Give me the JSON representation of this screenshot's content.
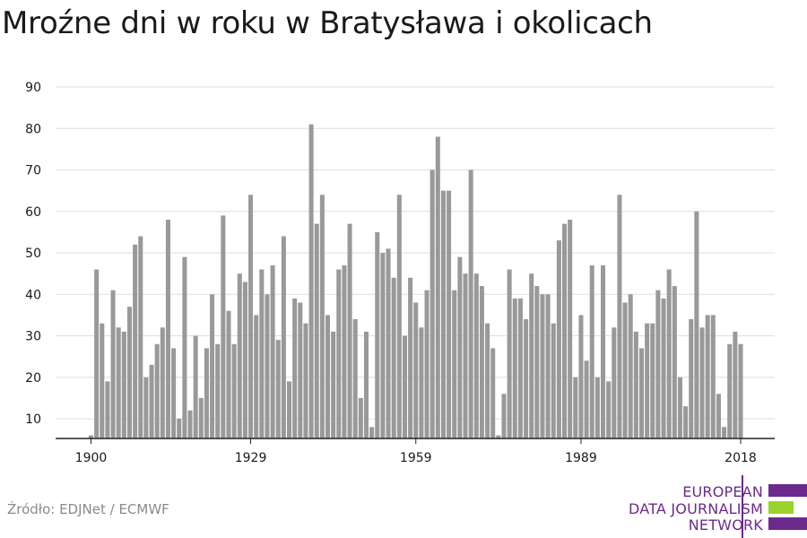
{
  "chart_data": {
    "type": "bar",
    "title": "Mroźne dni w roku w Bratysława i okolicach",
    "xlabel": "",
    "ylabel": "",
    "x_start": 1900,
    "x_end": 2018,
    "x_ticks": [
      "1900",
      "1929",
      "1959",
      "1989",
      "2018"
    ],
    "y_ticks": [
      "10",
      "20",
      "30",
      "40",
      "50",
      "60",
      "70",
      "80",
      "90"
    ],
    "ylim": [
      5,
      90
    ],
    "grid": true,
    "bar_color": "#999999",
    "values": [
      6,
      46,
      33,
      19,
      41,
      32,
      31,
      37,
      52,
      54,
      20,
      23,
      28,
      32,
      58,
      27,
      10,
      49,
      12,
      30,
      15,
      27,
      40,
      28,
      59,
      36,
      28,
      45,
      43,
      64,
      35,
      46,
      40,
      47,
      29,
      54,
      19,
      39,
      38,
      33,
      81,
      57,
      64,
      35,
      31,
      46,
      47,
      57,
      34,
      15,
      31,
      8,
      55,
      50,
      51,
      44,
      64,
      30,
      44,
      38,
      32,
      41,
      70,
      78,
      65,
      65,
      41,
      49,
      45,
      70,
      45,
      42,
      33,
      27,
      6,
      16,
      46,
      39,
      39,
      34,
      45,
      42,
      40,
      40,
      33,
      53,
      57,
      58,
      20,
      35,
      24,
      47,
      20,
      47,
      19,
      32,
      64,
      38,
      40,
      31,
      27,
      33,
      33,
      41,
      39,
      46,
      42,
      20,
      13,
      34,
      60,
      32,
      35,
      35,
      16,
      8,
      28,
      31,
      28
    ]
  },
  "source": "Źródło: EDJNet / ECMWF",
  "logo": {
    "line1": "EUROPEAN",
    "line2": "DATA JOURNALISM",
    "line3": "NETWORK",
    "color_purple": "#6b2a8c",
    "color_green": "#9bd32a"
  }
}
